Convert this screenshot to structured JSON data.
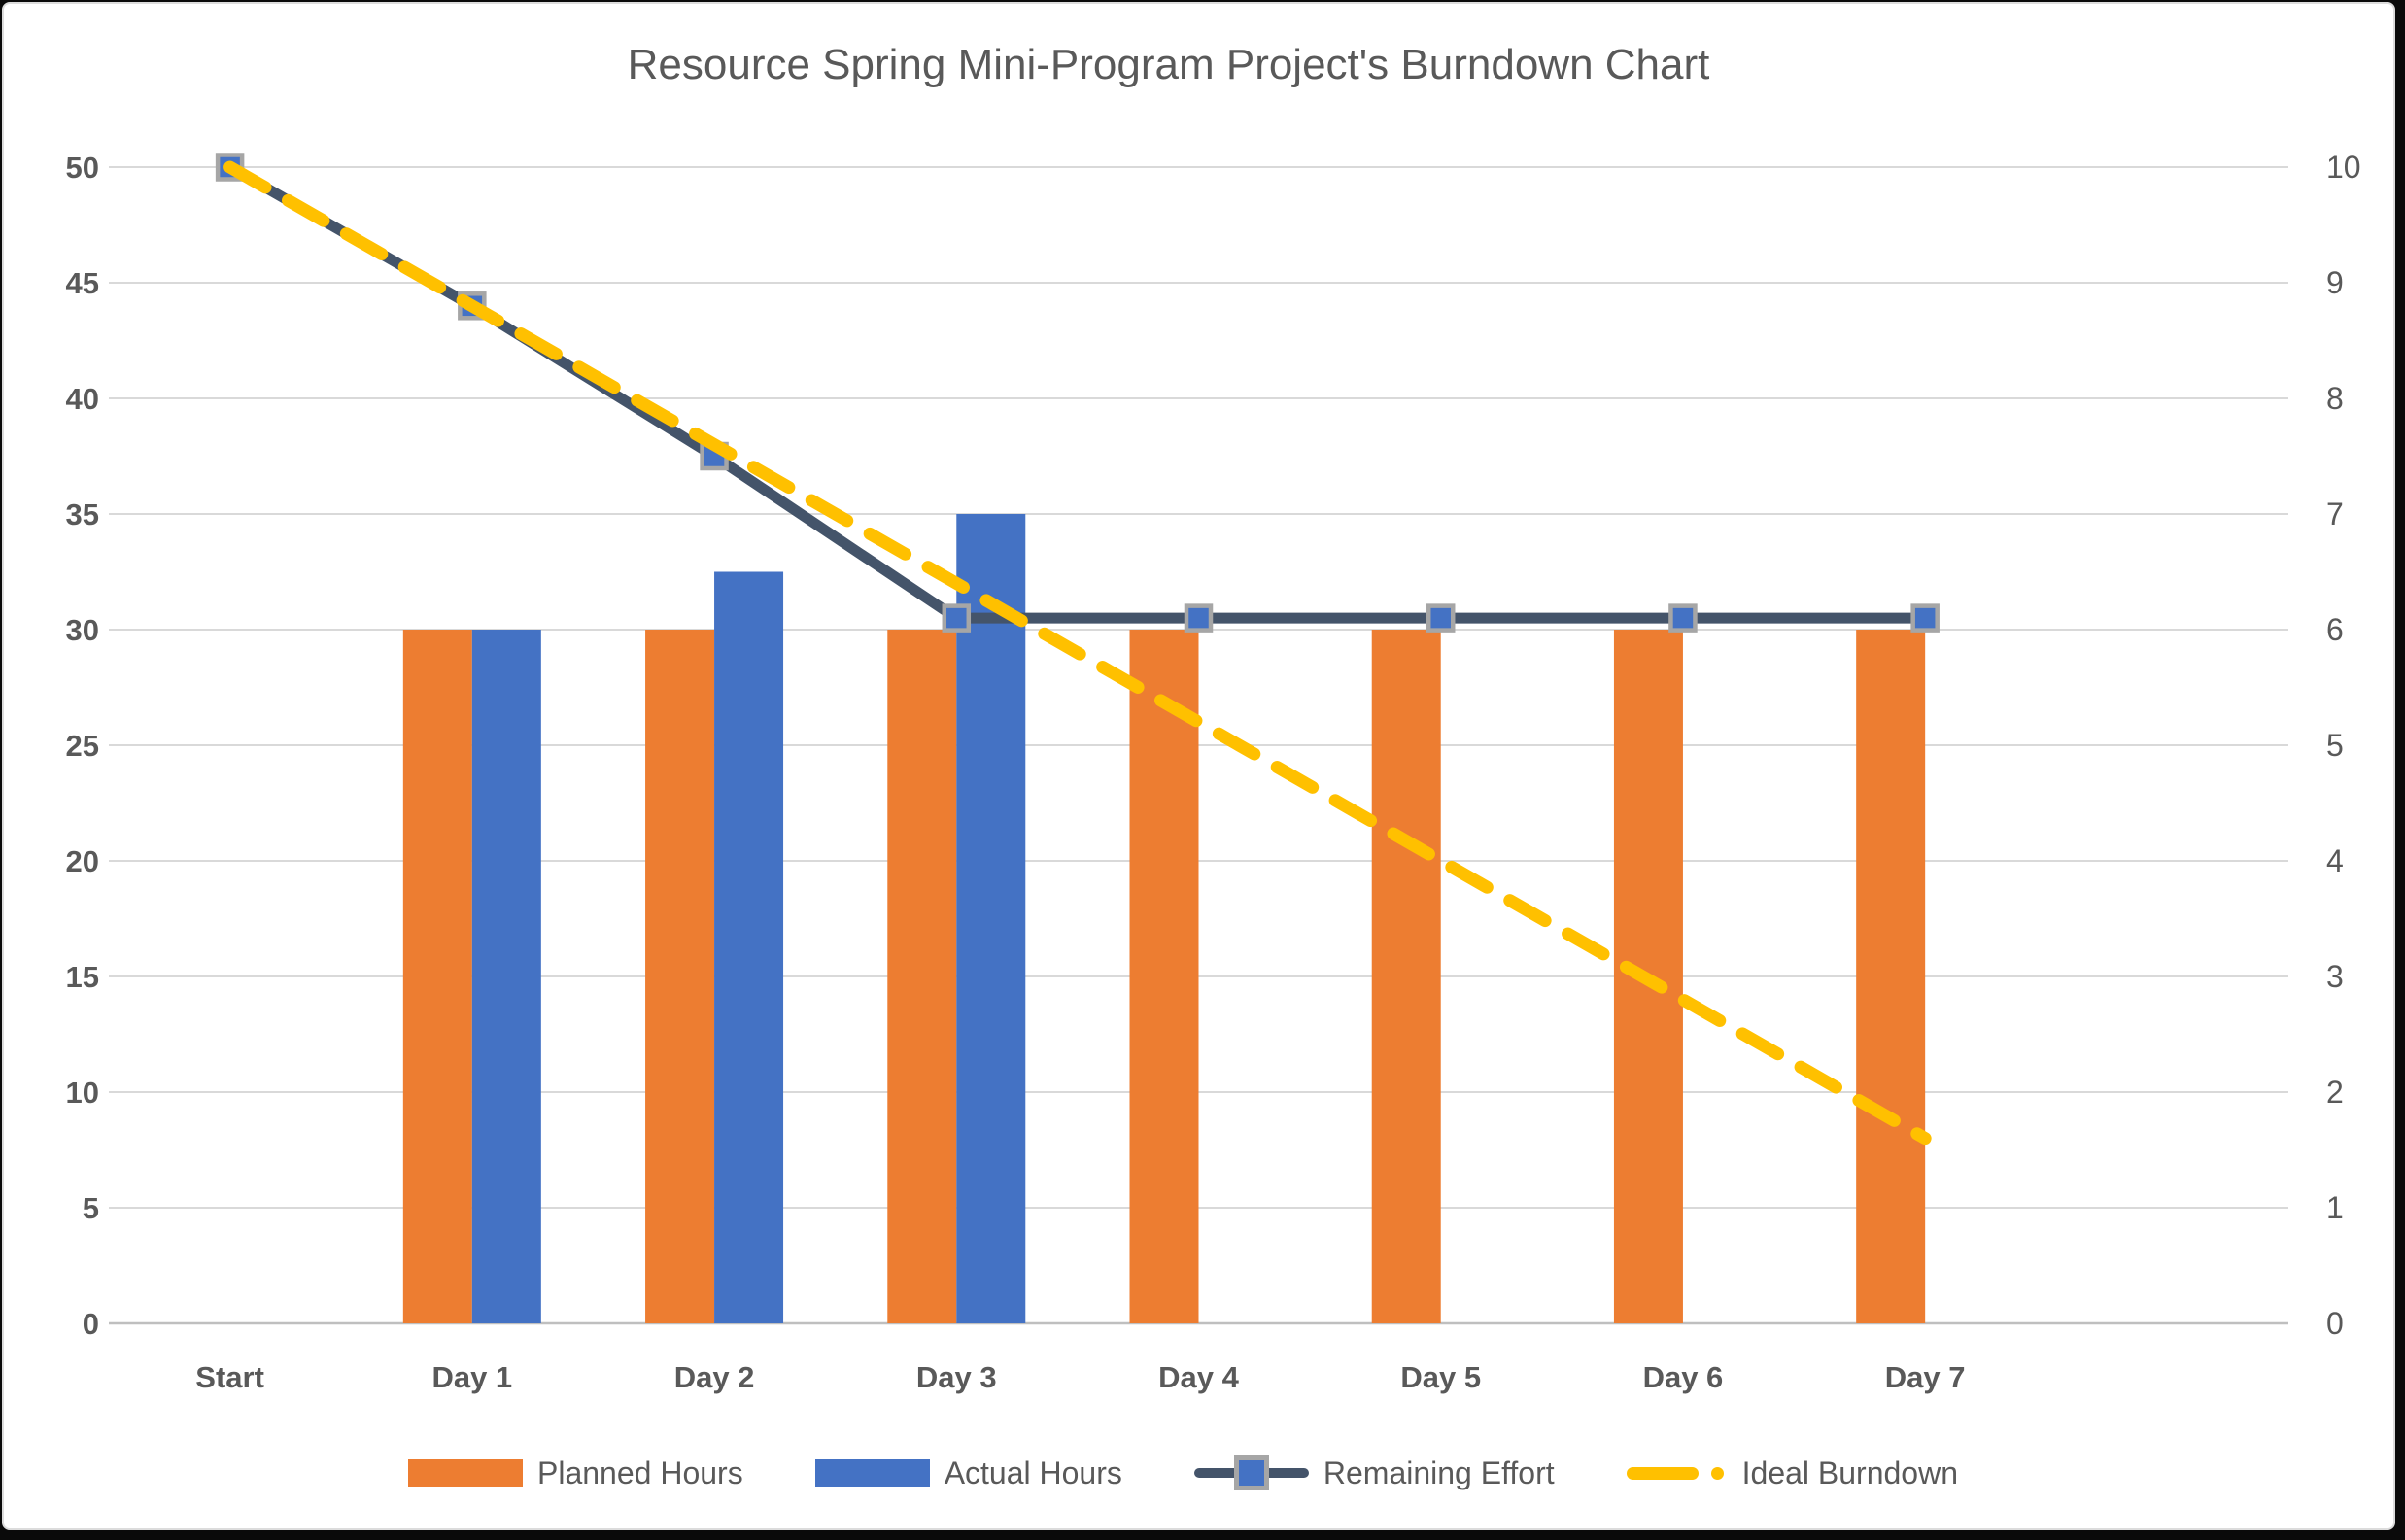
{
  "chart_data": {
    "type": "bar",
    "subtype": "clustered-bar-with-lines-combo",
    "title": "Resource Spring Mini-Program Project's Burndown Chart",
    "categories": [
      "Start",
      "Day 1",
      "Day 2",
      "Day 3",
      "Day 4",
      "Day 5",
      "Day 6",
      "Day 7"
    ],
    "series": [
      {
        "name": "Planned Hours",
        "type": "bar",
        "axis": "left",
        "color": "#ED7D31",
        "values": [
          null,
          30,
          30,
          30,
          30,
          30,
          30,
          30
        ]
      },
      {
        "name": "Actual Hours",
        "type": "bar",
        "axis": "left",
        "color": "#4472C4",
        "values": [
          null,
          30,
          32.5,
          35,
          null,
          null,
          null,
          null
        ]
      },
      {
        "name": "Remaining Effort",
        "type": "line",
        "axis": "right",
        "color": "#44546A",
        "marker": "square",
        "marker_fill": "#4472C4",
        "marker_border": "#A6A6A6",
        "values": [
          10,
          8.8,
          7.5,
          6.1,
          6.1,
          6.1,
          6.1,
          6.1
        ]
      },
      {
        "name": "Ideal Burndown",
        "type": "line",
        "axis": "right",
        "color": "#FFC000",
        "style": "dashed",
        "values": [
          10,
          8.8,
          7.6,
          6.4,
          5.2,
          4.0,
          2.8,
          1.6
        ]
      }
    ],
    "left_axis": {
      "min": 0,
      "max": 50,
      "step": 5,
      "ticks": [
        "0",
        "5",
        "10",
        "15",
        "20",
        "25",
        "30",
        "35",
        "40",
        "45",
        "50"
      ]
    },
    "right_axis": {
      "min": 0,
      "max": 10,
      "step": 1,
      "ticks": [
        "0",
        "1",
        "2",
        "3",
        "4",
        "5",
        "6",
        "7",
        "8",
        "9",
        "10"
      ]
    },
    "grid": true,
    "legend_position": "bottom",
    "trailing_empty_slots": 1
  },
  "colors": {
    "background": "#FFFFFF",
    "frame": "#0A0A0A",
    "card_border": "#DCDCDC",
    "gridline": "#D9D9D9",
    "axis_line": "#BFBFBF",
    "tick_text": "#595959",
    "title_text": "#595959",
    "legend_text": "#595959"
  }
}
